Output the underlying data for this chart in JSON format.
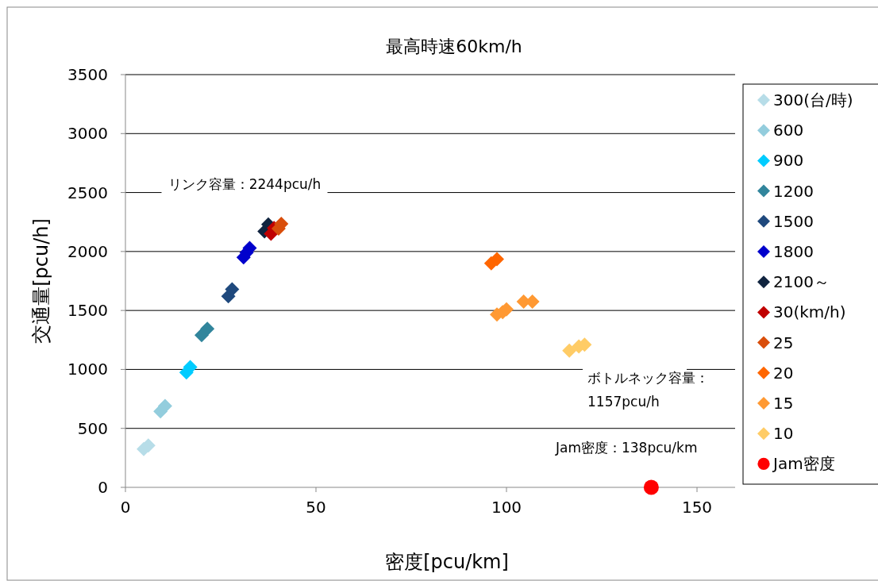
{
  "chart_data": {
    "type": "scatter",
    "title": "最高時速60km/h",
    "xlabel": "密度[pcu/km]",
    "ylabel": "交通量[pcu/h]",
    "xlim": [
      0,
      160
    ],
    "xticks": [
      0,
      50,
      100,
      150
    ],
    "ylim": [
      0,
      3500
    ],
    "yticks": [
      0,
      500,
      1000,
      1500,
      2000,
      2500,
      3000,
      3500
    ],
    "grid": "y",
    "legend": "right",
    "annotations": [
      "リンク容量：2244pcu/h",
      "ボトルネック容量：\n1157pcu/h",
      "Jam密度：138pcu/km"
    ],
    "series": [
      {
        "name": "300(台/時)",
        "color": "#b7dde8",
        "marker": "diamond",
        "x": [
          4.8,
          6.0
        ],
        "values": [
          325,
          355
        ]
      },
      {
        "name": "600",
        "color": "#93cddd",
        "marker": "diamond",
        "x": [
          9.2,
          10.4
        ],
        "values": [
          645,
          690
        ]
      },
      {
        "name": "900",
        "color": "#00ccff",
        "marker": "diamond",
        "x": [
          16,
          17
        ],
        "values": [
          975,
          1020
        ]
      },
      {
        "name": "1200",
        "color": "#31859c",
        "marker": "diamond",
        "x": [
          20,
          21.5
        ],
        "values": [
          1290,
          1345
        ]
      },
      {
        "name": "1500",
        "color": "#1f497d",
        "marker": "diamond",
        "x": [
          27,
          28
        ],
        "values": [
          1620,
          1680
        ]
      },
      {
        "name": "1800",
        "color": "#0000cc",
        "marker": "diamond",
        "x": [
          31,
          31.8,
          32.6
        ],
        "values": [
          1950,
          1990,
          2030
        ]
      },
      {
        "name": "2100～",
        "color": "#10243f",
        "marker": "diamond",
        "x": [
          36.5,
          37.5
        ],
        "values": [
          2170,
          2230
        ]
      },
      {
        "name": "30(km/h)",
        "color": "#c00000",
        "marker": "diamond",
        "x": [
          38.2,
          39.0
        ],
        "values": [
          2150,
          2200
        ]
      },
      {
        "name": "25",
        "color": "#d94e0b",
        "marker": "diamond",
        "x": [
          40.2,
          40.9
        ],
        "values": [
          2195,
          2235
        ]
      },
      {
        "name": "20",
        "color": "#ff6600",
        "marker": "diamond",
        "x": [
          96,
          97.5
        ],
        "values": [
          1900,
          1935
        ]
      },
      {
        "name": "15",
        "color": "#ff9933",
        "marker": "diamond",
        "x": [
          97.5,
          99,
          100,
          104.5,
          106.8
        ],
        "values": [
          1465,
          1485,
          1510,
          1575,
          1575
        ]
      },
      {
        "name": "10",
        "color": "#ffcc66",
        "marker": "diamond",
        "x": [
          116.5,
          119,
          120.5
        ],
        "values": [
          1160,
          1195,
          1210
        ]
      },
      {
        "name": "Jam密度",
        "color": "#ff0000",
        "marker": "circle",
        "x": [
          138
        ],
        "values": [
          0
        ]
      }
    ]
  }
}
